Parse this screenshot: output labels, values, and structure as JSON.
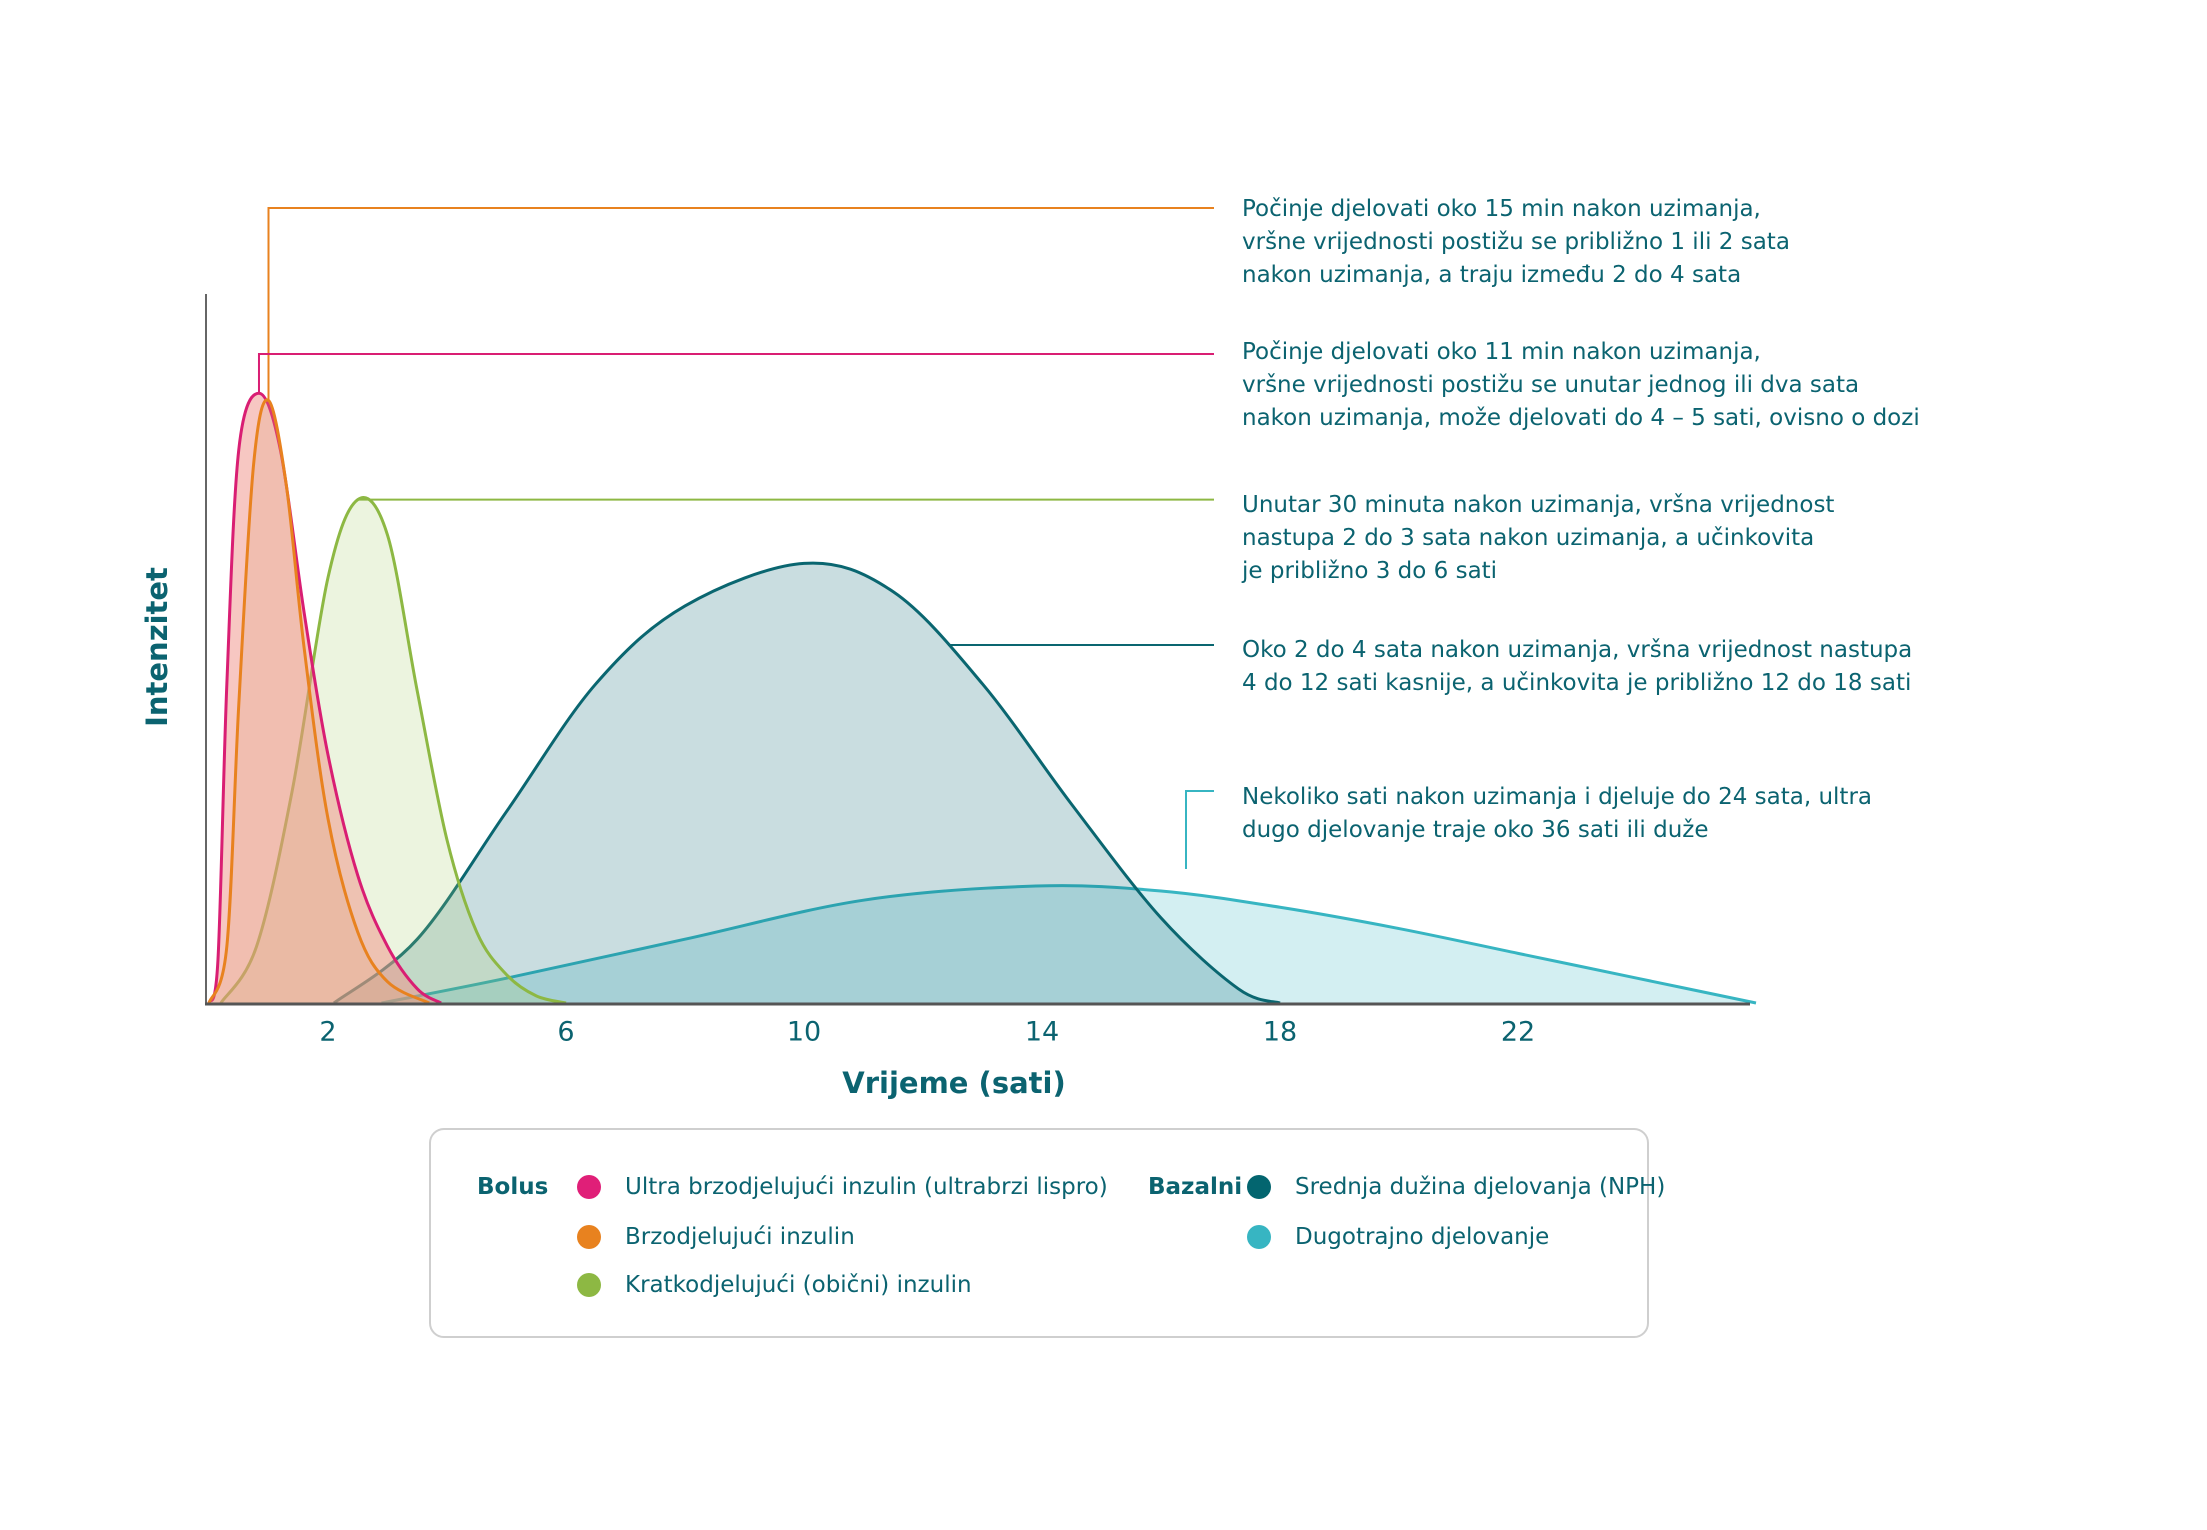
{
  "chart_data": {
    "type": "area",
    "title": "",
    "xlabel": "Vrijeme (sati)",
    "ylabel": "Intenzitet",
    "xlim": [
      0,
      26
    ],
    "ylim": [
      0,
      100
    ],
    "x_ticks": [
      2,
      6,
      10,
      14,
      18,
      22
    ],
    "grid": false,
    "series": [
      {
        "key": "long",
        "name": "Dugotrajno djelovanje",
        "color": "#37b5c2",
        "fill": "#37b5c2",
        "points": [
          [
            2.9,
            0
          ],
          [
            5,
            3.5
          ],
          [
            8,
            9
          ],
          [
            11,
            14.5
          ],
          [
            13.9,
            16.5
          ],
          [
            16,
            15.8
          ],
          [
            18,
            13.5
          ],
          [
            20,
            10.5
          ],
          [
            22,
            7
          ],
          [
            24,
            3.5
          ],
          [
            26,
            0
          ]
        ]
      },
      {
        "key": "nph",
        "name": "Srednja dužina djelovanja (NPH)",
        "color": "#0a6670",
        "fill": "#0a6670",
        "points": [
          [
            2.1,
            0
          ],
          [
            3.5,
            9
          ],
          [
            5,
            27
          ],
          [
            6.5,
            45
          ],
          [
            8,
            56
          ],
          [
            10,
            62
          ],
          [
            11.5,
            58
          ],
          [
            13,
            45
          ],
          [
            14.5,
            28
          ],
          [
            16,
            12
          ],
          [
            17.3,
            2
          ],
          [
            18,
            0
          ]
        ]
      },
      {
        "key": "green",
        "name": "Kratkodjelujući (obični) inzulin",
        "color": "#8db843",
        "fill": "#a9cc6e",
        "points": [
          [
            0.2,
            0
          ],
          [
            0.8,
            8
          ],
          [
            1.4,
            30
          ],
          [
            2,
            60
          ],
          [
            2.5,
            71
          ],
          [
            3,
            66
          ],
          [
            3.5,
            44
          ],
          [
            4,
            23
          ],
          [
            4.5,
            10
          ],
          [
            5,
            4
          ],
          [
            5.5,
            1
          ],
          [
            6,
            0
          ]
        ]
      },
      {
        "key": "pink",
        "name": "Ultra brzodjelujući inzulin (ultrabrzi lispro)",
        "color": "#d91e73",
        "fill": "#ef8f86",
        "points": [
          [
            0,
            0
          ],
          [
            0.15,
            6
          ],
          [
            0.3,
            45
          ],
          [
            0.5,
            78
          ],
          [
            0.84,
            86
          ],
          [
            1.2,
            78
          ],
          [
            1.6,
            55
          ],
          [
            2,
            35
          ],
          [
            2.5,
            18
          ],
          [
            3,
            8
          ],
          [
            3.5,
            2
          ],
          [
            3.9,
            0
          ]
        ]
      },
      {
        "key": "orange",
        "name": "Brzodjelujući inzulin",
        "color": "#e8821f",
        "fill": "#e0a070",
        "points": [
          [
            0,
            0
          ],
          [
            0.3,
            8
          ],
          [
            0.5,
            42
          ],
          [
            0.75,
            76
          ],
          [
            1.0,
            85
          ],
          [
            1.3,
            73
          ],
          [
            1.6,
            50
          ],
          [
            2,
            26
          ],
          [
            2.5,
            10
          ],
          [
            3,
            3
          ],
          [
            3.7,
            0
          ]
        ]
      }
    ],
    "annotations": [
      {
        "series": "orange",
        "lines": [
          "Počinje djelovati oko 15 min nakon uzimanja,",
          "vršne vrijednosti postižu se približno 1 ili 2 sata",
          "nakon uzimanja, a traju između 2 do 4 sata"
        ]
      },
      {
        "series": "pink",
        "lines": [
          "Počinje djelovati oko 11 min nakon uzimanja,",
          "vršne vrijednosti postižu se unutar jednog ili dva sata",
          "nakon uzimanja, može djelovati do 4 – 5 sati, ovisno o dozi"
        ]
      },
      {
        "series": "green",
        "lines": [
          "Unutar 30 minuta nakon uzimanja, vršna vrijednost",
          "nastupa 2 do 3 sata nakon uzimanja, a učinkovita",
          "je približno 3 do 6 sati"
        ]
      },
      {
        "series": "nph",
        "lines": [
          "Oko 2 do 4 sata nakon uzimanja, vršna vrijednost nastupa",
          "4 do 12 sati kasnije, a učinkovita je približno 12 do 18 sati"
        ]
      },
      {
        "series": "long",
        "lines": [
          "Nekoliko sati nakon uzimanja i djeluje do 24 sata, ultra",
          "dugo djelovanje traje oko 36 sati ili duže"
        ]
      }
    ],
    "legend": {
      "placement": "bottom",
      "groups": [
        {
          "title": "Bolus",
          "items": [
            {
              "label": "Ultra brzodjelujući inzulin (ultrabrzi lispro)",
              "color": "#e01f78"
            },
            {
              "label": "Brzodjelujući inzulin",
              "color": "#e8821f"
            },
            {
              "label": "Kratkodjelujući (obični) inzulin",
              "color": "#8db843"
            }
          ]
        },
        {
          "title": "Bazalni",
          "items": [
            {
              "label": "Srednja dužina djelovanja (NPH)",
              "color": "#03656f"
            },
            {
              "label": "Dugotrajno djelovanje",
              "color": "#37b5c2"
            }
          ]
        }
      ]
    }
  }
}
